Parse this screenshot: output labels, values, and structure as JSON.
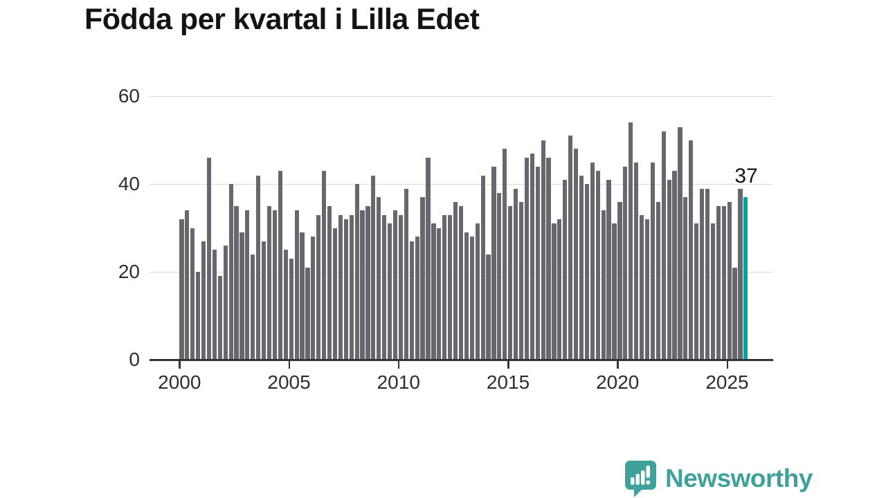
{
  "title": "Födda per kvartal i Lilla Edet",
  "annotation": {
    "value": "37"
  },
  "logo": {
    "text": "Newsworthy",
    "icon": "newsworthy-speech-bubble-bar-chart-icon"
  },
  "colors": {
    "bar_gray": "#67676d",
    "accent_teal": "#00a49f",
    "logo_teal": "#3fa19c",
    "gridline": "#d9d9d9",
    "axis": "#333333",
    "tick_text": "#2d2d2d",
    "title_text": "#141414"
  },
  "chart_data": {
    "type": "bar",
    "title": "Födda per kvartal i Lilla Edet",
    "x_period": "quarterly",
    "x_start": "2000 Q1",
    "x_end": "2025 Q4",
    "x_tick_labels": [
      "2000",
      "2005",
      "2010",
      "2015",
      "2020",
      "2025"
    ],
    "y_ticks": [
      0,
      20,
      40,
      60
    ],
    "y_tick_labels": [
      "0",
      "20",
      "40",
      "60"
    ],
    "ylim": [
      0,
      60
    ],
    "grid": "horizontal",
    "legend": "none",
    "highlight": {
      "index": 103,
      "value": 37,
      "color_role": "accent_teal",
      "label": "37"
    },
    "values": [
      32,
      34,
      30,
      20,
      27,
      46,
      25,
      19,
      26,
      40,
      35,
      29,
      34,
      24,
      42,
      27,
      35,
      34,
      43,
      25,
      23,
      34,
      29,
      21,
      28,
      33,
      43,
      35,
      30,
      33,
      32,
      33,
      40,
      34,
      35,
      42,
      37,
      33,
      31,
      34,
      33,
      39,
      27,
      28,
      37,
      46,
      31,
      30,
      33,
      33,
      36,
      35,
      29,
      28,
      31,
      42,
      24,
      44,
      38,
      48,
      35,
      39,
      36,
      46,
      47,
      44,
      50,
      46,
      31,
      32,
      41,
      51,
      48,
      42,
      40,
      45,
      43,
      34,
      41,
      31,
      36,
      44,
      54,
      45,
      33,
      32,
      45,
      36,
      52,
      41,
      43,
      53,
      37,
      50,
      31,
      39,
      39,
      31,
      35,
      35,
      36,
      21,
      39,
      37
    ]
  }
}
